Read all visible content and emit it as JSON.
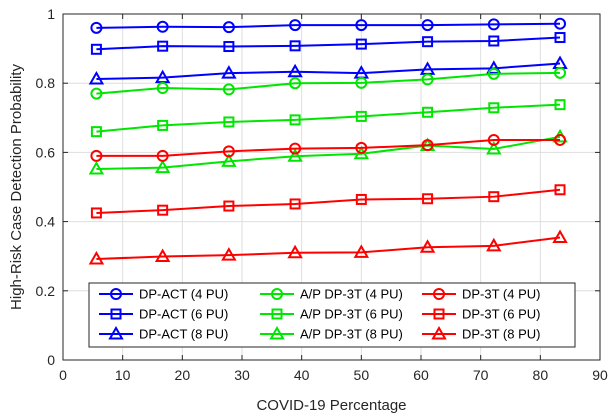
{
  "chart_data": {
    "type": "line",
    "xlabel": "COVID-19 Percentage",
    "ylabel": "High-Risk Case Detection Probability",
    "xlim": [
      0,
      90
    ],
    "ylim": [
      0,
      1
    ],
    "xticks": [
      0,
      10,
      20,
      30,
      40,
      50,
      60,
      70,
      80,
      90
    ],
    "yticks": [
      0,
      0.2,
      0.4,
      0.6,
      0.8,
      1
    ],
    "x": [
      5.6,
      16.7,
      27.8,
      38.9,
      50.0,
      61.1,
      72.2,
      83.3
    ],
    "grid": true,
    "legend_position": "bottom",
    "series": [
      {
        "name": "DP-ACT (4 PU)",
        "color": "#0000ff",
        "marker": "circle",
        "values": [
          0.96,
          0.963,
          0.962,
          0.968,
          0.968,
          0.968,
          0.97,
          0.972
        ]
      },
      {
        "name": "DP-ACT (6 PU)",
        "color": "#0000ff",
        "marker": "square",
        "values": [
          0.898,
          0.907,
          0.906,
          0.908,
          0.913,
          0.92,
          0.922,
          0.932
        ]
      },
      {
        "name": "DP-ACT (8 PU)",
        "color": "#0000ff",
        "marker": "triangle",
        "values": [
          0.812,
          0.816,
          0.829,
          0.833,
          0.829,
          0.84,
          0.843,
          0.857
        ]
      },
      {
        "name": "A/P DP-3T (4 PU)",
        "color": "#00e600",
        "marker": "circle",
        "values": [
          0.77,
          0.786,
          0.782,
          0.8,
          0.801,
          0.811,
          0.827,
          0.83
        ]
      },
      {
        "name": "A/P DP-3T (6 PU)",
        "color": "#00e600",
        "marker": "square",
        "values": [
          0.66,
          0.678,
          0.688,
          0.694,
          0.704,
          0.716,
          0.729,
          0.738
        ]
      },
      {
        "name": "A/P DP-3T (8 PU)",
        "color": "#00e600",
        "marker": "triangle",
        "values": [
          0.552,
          0.556,
          0.574,
          0.589,
          0.596,
          0.62,
          0.61,
          0.645
        ]
      },
      {
        "name": "DP-3T (4 PU)",
        "color": "#ff0000",
        "marker": "circle",
        "values": [
          0.59,
          0.59,
          0.603,
          0.611,
          0.613,
          0.621,
          0.636,
          0.636
        ]
      },
      {
        "name": "DP-3T (6 PU)",
        "color": "#ff0000",
        "marker": "square",
        "values": [
          0.425,
          0.433,
          0.445,
          0.451,
          0.464,
          0.466,
          0.472,
          0.492
        ]
      },
      {
        "name": "DP-3T (8 PU)",
        "color": "#ff0000",
        "marker": "triangle",
        "values": [
          0.292,
          0.299,
          0.303,
          0.31,
          0.311,
          0.326,
          0.33,
          0.354
        ]
      }
    ]
  }
}
